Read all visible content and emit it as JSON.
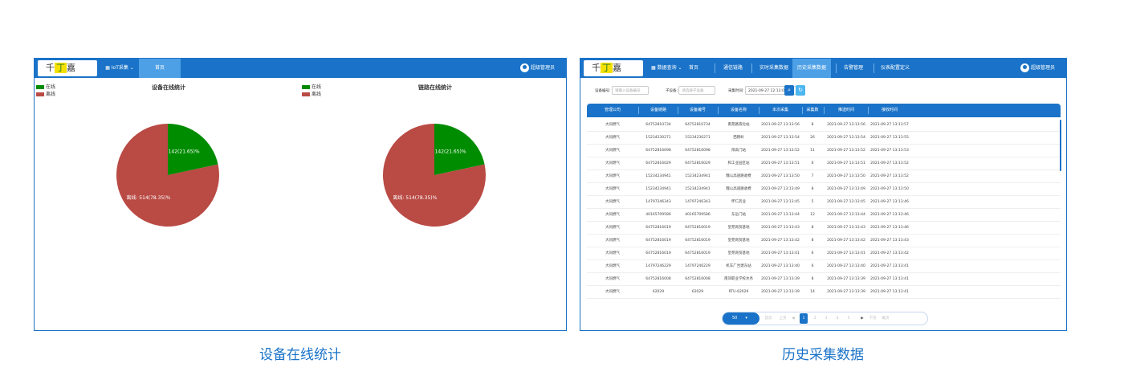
{
  "captions": {
    "left": "设备在线统计",
    "right": "历史采集数据"
  },
  "left_screen": {
    "logo": {
      "pre": "千",
      "mid": "丁",
      "post": "嘉",
      "mark": "®"
    },
    "nav": {
      "menu": "IoT采集",
      "home": "首页"
    },
    "user": "超级管理员",
    "charts": [
      {
        "title": "设备在线统计",
        "legend": [
          "在线",
          "离线"
        ],
        "colors": [
          "#008c00",
          "#b94a44"
        ],
        "slices": [
          {
            "name": "在线",
            "value": 142,
            "percent": "21.65",
            "label": "在线: 142(21.65)%"
          },
          {
            "name": "离线",
            "value": 514,
            "percent": "78.35",
            "label": "离线: 514(78.35)%"
          }
        ]
      },
      {
        "title": "链路在线统计",
        "legend": [
          "在线",
          "离线"
        ],
        "colors": [
          "#008c00",
          "#b94a44"
        ],
        "slices": [
          {
            "name": "在线",
            "value": 142,
            "percent": "21.65",
            "label": "在线: 142(21.65)%"
          },
          {
            "name": "离线",
            "value": 514,
            "percent": "78.35",
            "label": "离线: 514(78.35)%"
          }
        ]
      }
    ]
  },
  "right_screen": {
    "logo": {
      "pre": "千",
      "mid": "丁",
      "post": "嘉",
      "mark": "®"
    },
    "nav": {
      "menu": "数据查询",
      "tabs": [
        "首页",
        "通信链路",
        "实时采集数据",
        "历史采集数据",
        "告警管理",
        "仪表配置定义"
      ],
      "active_index": 3
    },
    "user": "超级管理员",
    "filters": {
      "device_label": "设备编号:",
      "device_placeholder": "请输入设备编号",
      "sub_label": "子设备:",
      "sub_placeholder": "请选择子设备",
      "time_label": "采集时间:",
      "time_value": "2021-09-27 12:13:00 -"
    },
    "columns": [
      "管理公司",
      "设备链路",
      "设备编号",
      "设备名称",
      "本次采集",
      "采集数",
      "推送时间",
      "接收时间"
    ],
    "rows": [
      [
        "大同燃气",
        "64752810734",
        "64752810734",
        "南苑路液化站",
        "2021-09-27 13:13:56",
        "8",
        "2021-09-27 13:13:56",
        "2021-09-27 13:13:57"
      ],
      [
        "大同燃气",
        "15234230271",
        "15234230271",
        "西韩岭",
        "2021-09-27 13:13:54",
        "26",
        "2021-09-27 13:13:54",
        "2021-09-27 13:13:55"
      ],
      [
        "大同燃气",
        "64752816098",
        "64752816098",
        "阳高门站",
        "2021-09-27 13:13:52",
        "11",
        "2021-09-27 13:13:52",
        "2021-09-27 13:13:53"
      ],
      [
        "大同燃气",
        "64752816029",
        "64752816029",
        "和工业园区站",
        "2021-09-27 13:13:51",
        "6",
        "2021-09-27 13:13:51",
        "2021-09-27 13:13:52"
      ],
      [
        "大同燃气",
        "15234234941",
        "15234234941",
        "魏公高速路收费",
        "2021-09-27 13:13:50",
        "7",
        "2021-09-27 13:13:50",
        "2021-09-27 13:13:52"
      ],
      [
        "大同燃气",
        "15234234941",
        "15234234941",
        "魏公高速路收费",
        "2021-09-27 13:13:49",
        "8",
        "2021-09-27 13:13:49",
        "2021-09-27 13:13:50"
      ],
      [
        "大同燃气",
        "14797246343",
        "14797246343",
        "怀仁药业",
        "2021-09-27 13:13:45",
        "5",
        "2021-09-27 13:13:45",
        "2021-09-27 13:13:46"
      ],
      [
        "大同燃气",
        "40165709586",
        "40165709586",
        "东岳门站",
        "2021-09-27 13:13:44",
        "12",
        "2021-09-27 13:13:44",
        "2021-09-27 13:13:46"
      ],
      [
        "大同燃气",
        "64752816019",
        "64752816019",
        "皇苑商贸基地",
        "2021-09-27 13:13:43",
        "8",
        "2021-09-27 13:13:43",
        "2021-09-27 13:13:46"
      ],
      [
        "大同燃气",
        "64752816019",
        "64752816019",
        "皇苑商贸基地",
        "2021-09-27 13:13:42",
        "8",
        "2021-09-27 13:13:42",
        "2021-09-27 13:13:43"
      ],
      [
        "大同燃气",
        "64752816019",
        "64752816019",
        "皇苑商贸基地",
        "2021-09-27 13:13:41",
        "6",
        "2021-09-27 13:13:41",
        "2021-09-27 13:13:42"
      ],
      [
        "大同燃气",
        "14797246229",
        "14797246229",
        "机车厂合建东站",
        "2021-09-27 13:13:40",
        "6",
        "2021-09-27 13:13:40",
        "2021-09-27 13:13:41"
      ],
      [
        "大同燃气",
        "64752816008",
        "64752816008",
        "南郊职业学校水务",
        "2021-09-27 13:13:39",
        "8",
        "2021-09-27 13:13:39",
        "2021-09-27 13:13:41"
      ],
      [
        "大同燃气",
        "62029",
        "62029",
        "RTU-62029",
        "2021-09-27 13:13:39",
        "14",
        "2021-09-27 13:13:39",
        "2021-09-27 13:13:41"
      ]
    ],
    "pagination": {
      "page_size": "50",
      "first": "首页",
      "prev": "上页",
      "pages": [
        "1",
        "2",
        "3",
        "4",
        "5"
      ],
      "current": "1",
      "next": "下页",
      "last": "尾页"
    }
  }
}
